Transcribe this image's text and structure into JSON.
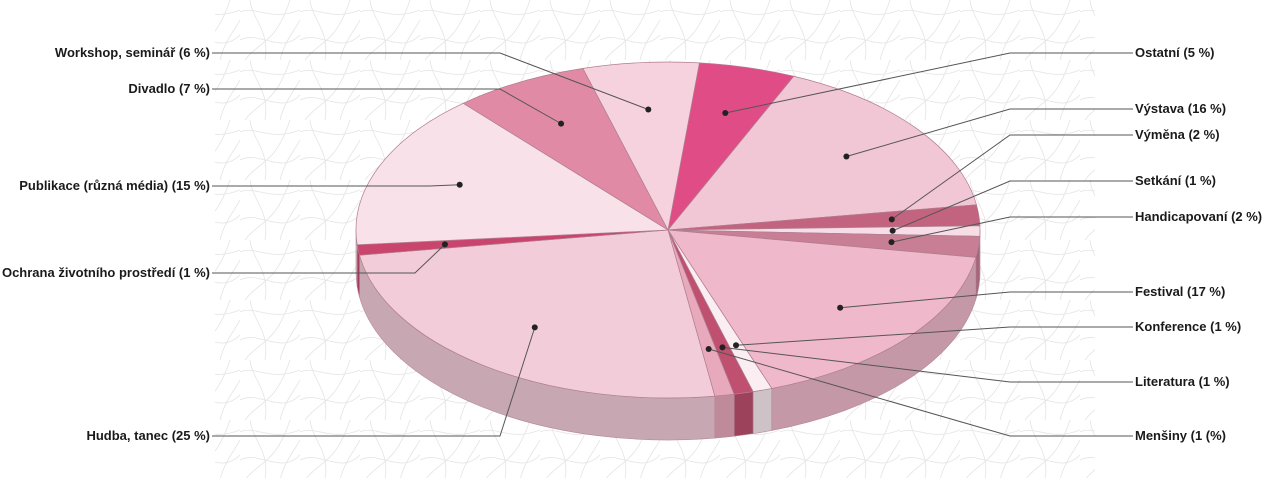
{
  "chart_data": {
    "type": "pie",
    "style": "3d",
    "slices": [
      {
        "label": "Ostatní (5 %)",
        "value": 5,
        "color": "#e04c86"
      },
      {
        "label": "Výstava (16 %)",
        "value": 16,
        "color": "#f1c6d5"
      },
      {
        "label": "Výměna (2 %)",
        "value": 2,
        "color": "#c2637f"
      },
      {
        "label": "Setkání (1 %)",
        "value": 1,
        "color": "#f6dde6"
      },
      {
        "label": "Handicapovaní (2 %)",
        "value": 2,
        "color": "#c87e95"
      },
      {
        "label": "Festival (17 %)",
        "value": 17,
        "color": "#efb9cb"
      },
      {
        "label": "Konference (1 %)",
        "value": 1,
        "color": "#faeef2"
      },
      {
        "label": "Literatura (1 %)",
        "value": 1,
        "color": "#c0506f"
      },
      {
        "label": "Menšiny (1 (%)",
        "value": 1,
        "color": "#e9a9bd"
      },
      {
        "label": "Hudba, tanec (25 %)",
        "value": 25,
        "color": "#f3ccd9"
      },
      {
        "label": "Ochrana životního prostředí (1 %)",
        "value": 1,
        "color": "#c9456e"
      },
      {
        "label": "Publikace (různá média) (15 %)",
        "value": 15,
        "color": "#f8e1e8"
      },
      {
        "label": "Divadlo (7 %)",
        "value": 7,
        "color": "#e08aa6"
      },
      {
        "label": "Workshop, seminář (6 %)",
        "value": 6,
        "color": "#f6d2de"
      }
    ]
  }
}
